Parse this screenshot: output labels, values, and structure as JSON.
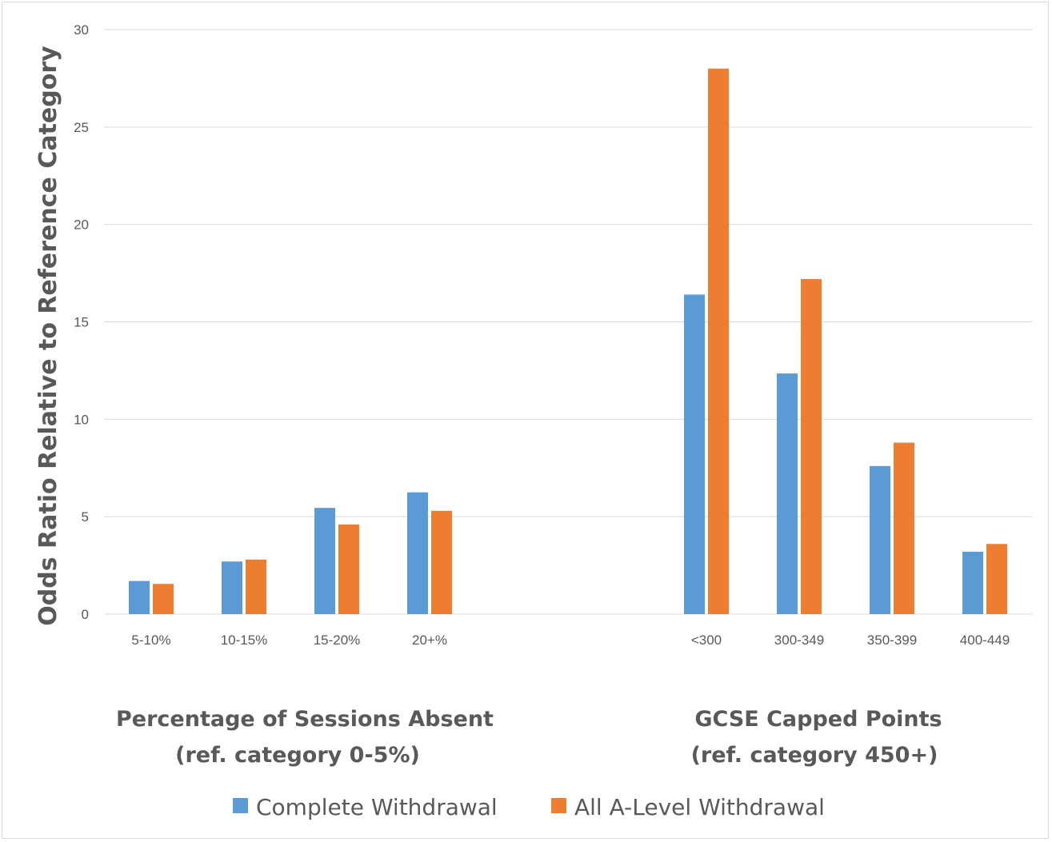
{
  "chart_data": {
    "type": "bar",
    "ylabel": "Odds Ratio Relative to Reference Category",
    "ylim": [
      0,
      30
    ],
    "yticks": [
      0,
      5,
      10,
      15,
      20,
      25,
      30
    ],
    "grid": true,
    "legend_position": "bottom",
    "groups": [
      {
        "title_line1": "Percentage of Sessions Absent",
        "title_line2": "(ref. category 0-5%)",
        "categories": [
          "5-10%",
          "10-15%",
          "15-20%",
          "20+%"
        ]
      },
      {
        "title_line1": "GCSE Capped Points",
        "title_line2": "(ref. category 450+)",
        "categories": [
          "<300",
          "300-349",
          "350-399",
          "400-449"
        ]
      }
    ],
    "categories": [
      "5-10%",
      "10-15%",
      "15-20%",
      "20+%",
      "<300",
      "300-349",
      "350-399",
      "400-449"
    ],
    "series": [
      {
        "name": "Complete Withdrawal",
        "color": "#5b9bd5",
        "values": [
          1.7,
          2.7,
          5.45,
          6.25,
          16.4,
          12.35,
          7.6,
          3.2
        ]
      },
      {
        "name": "All A-Level Withdrawal",
        "color": "#ed7d31",
        "values": [
          1.55,
          2.8,
          4.6,
          5.3,
          28.0,
          17.2,
          8.8,
          3.6
        ]
      }
    ]
  }
}
